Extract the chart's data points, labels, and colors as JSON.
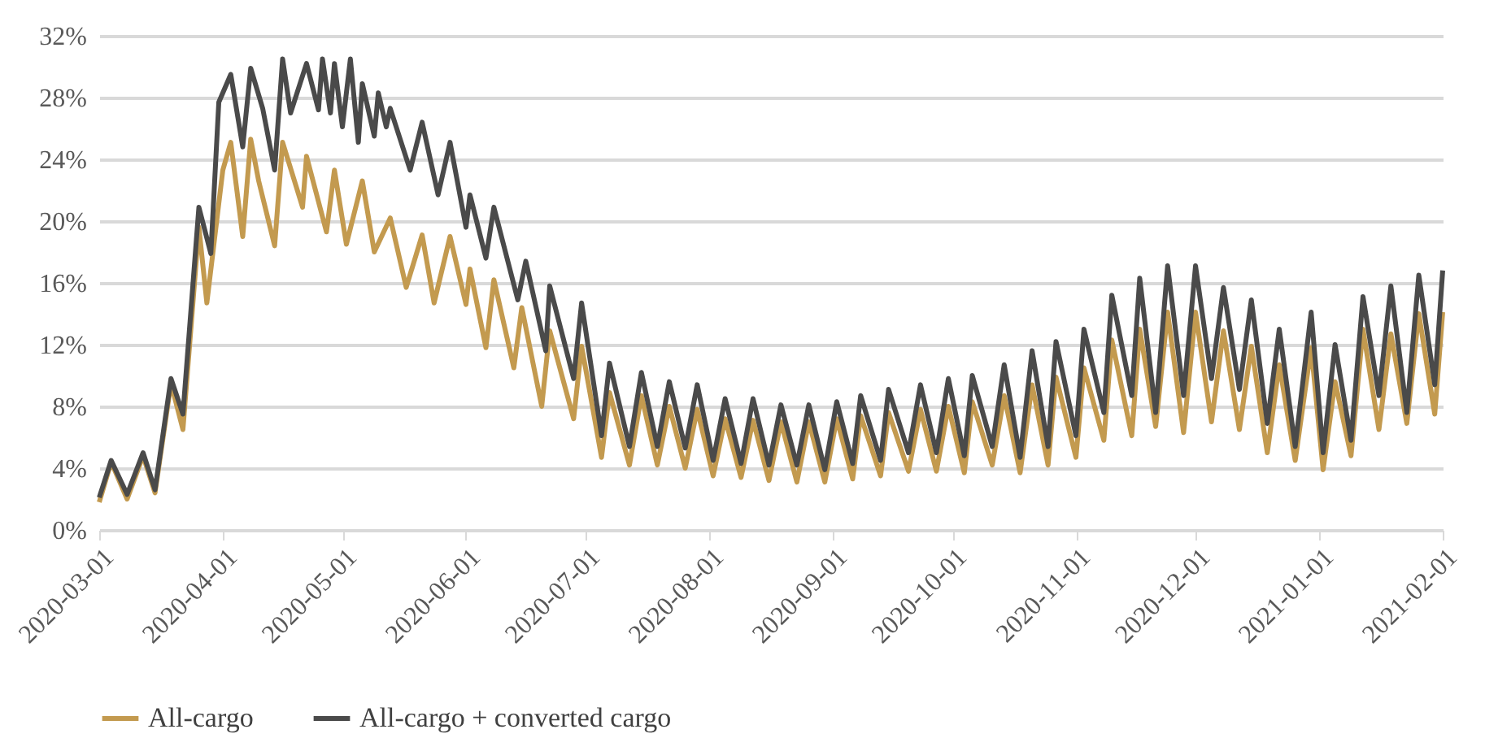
{
  "chart_data": {
    "type": "line",
    "xlim": [
      "2020-03-01",
      "2021-02-01"
    ],
    "xticks": [
      "2020-03-01",
      "2020-04-01",
      "2020-05-01",
      "2020-06-01",
      "2020-07-01",
      "2020-08-01",
      "2020-09-01",
      "2020-10-01",
      "2020-11-01",
      "2020-12-01",
      "2021-01-01",
      "2021-02-01"
    ],
    "ylim": [
      0,
      32
    ],
    "yticks": [
      {
        "value": 0,
        "label": "0%"
      },
      {
        "value": 4,
        "label": "4%"
      },
      {
        "value": 8,
        "label": "8%"
      },
      {
        "value": 12,
        "label": "12%"
      },
      {
        "value": 16,
        "label": "16%"
      },
      {
        "value": 20,
        "label": "20%"
      },
      {
        "value": 24,
        "label": "24%"
      },
      {
        "value": 28,
        "label": "28%"
      },
      {
        "value": 32,
        "label": "32%"
      }
    ],
    "grid": "y",
    "legend": "bottom",
    "line_style": "solid",
    "marker": "none",
    "series": [
      {
        "name": "All-cargo",
        "color": "#c39a4f",
        "x": [
          "2020-03-01",
          "2020-03-04",
          "2020-03-08",
          "2020-03-12",
          "2020-03-15",
          "2020-03-19",
          "2020-03-22",
          "2020-03-26",
          "2020-03-28",
          "2020-04-01",
          "2020-04-03",
          "2020-04-06",
          "2020-04-08",
          "2020-04-10",
          "2020-04-14",
          "2020-04-16",
          "2020-04-21",
          "2020-04-22",
          "2020-04-27",
          "2020-04-29",
          "2020-05-02",
          "2020-05-06",
          "2020-05-09",
          "2020-05-13",
          "2020-05-17",
          "2020-05-21",
          "2020-05-24",
          "2020-05-28",
          "2020-06-01",
          "2020-06-02",
          "2020-06-06",
          "2020-06-08",
          "2020-06-13",
          "2020-06-15",
          "2020-06-20",
          "2020-06-22",
          "2020-06-28",
          "2020-06-30",
          "2020-07-05",
          "2020-07-07",
          "2020-07-12",
          "2020-07-15",
          "2020-07-19",
          "2020-07-22",
          "2020-07-26",
          "2020-07-29",
          "2020-08-02",
          "2020-08-05",
          "2020-08-09",
          "2020-08-12",
          "2020-08-16",
          "2020-08-19",
          "2020-08-23",
          "2020-08-26",
          "2020-08-30",
          "2020-09-02",
          "2020-09-06",
          "2020-09-08",
          "2020-09-13",
          "2020-09-15",
          "2020-09-20",
          "2020-09-23",
          "2020-09-27",
          "2020-09-30",
          "2020-10-04",
          "2020-10-06",
          "2020-10-11",
          "2020-10-14",
          "2020-10-18",
          "2020-10-21",
          "2020-10-25",
          "2020-10-27",
          "2020-11-01",
          "2020-11-03",
          "2020-11-08",
          "2020-11-10",
          "2020-11-15",
          "2020-11-17",
          "2020-11-21",
          "2020-11-24",
          "2020-11-28",
          "2020-12-01",
          "2020-12-05",
          "2020-12-08",
          "2020-12-12",
          "2020-12-15",
          "2020-12-19",
          "2020-12-22",
          "2020-12-26",
          "2020-12-30",
          "2021-01-02",
          "2021-01-05",
          "2021-01-09",
          "2021-01-12",
          "2021-01-16",
          "2021-01-19",
          "2021-01-23",
          "2021-01-26",
          "2021-01-30",
          "2021-02-01"
        ],
        "values": [
          1.8,
          4.4,
          2.0,
          4.8,
          2.4,
          9.5,
          6.5,
          19.6,
          14.7,
          23.3,
          25.1,
          19.0,
          25.3,
          22.6,
          18.4,
          25.1,
          20.9,
          24.2,
          19.3,
          23.3,
          18.5,
          22.6,
          18.0,
          20.2,
          15.7,
          19.1,
          14.7,
          19.0,
          14.6,
          16.9,
          11.8,
          16.2,
          10.5,
          14.4,
          8.0,
          12.9,
          7.2,
          11.9,
          4.7,
          8.9,
          4.2,
          8.7,
          4.2,
          8.0,
          4.0,
          7.8,
          3.5,
          7.2,
          3.4,
          7.1,
          3.2,
          7.0,
          3.1,
          7.0,
          3.1,
          7.2,
          3.3,
          7.4,
          3.5,
          7.6,
          3.8,
          7.8,
          3.8,
          8.0,
          3.7,
          8.3,
          4.2,
          8.7,
          3.7,
          9.4,
          4.2,
          9.9,
          4.7,
          10.5,
          5.8,
          12.3,
          6.1,
          13.0,
          6.7,
          14.1,
          6.3,
          14.1,
          7.0,
          12.9,
          6.5,
          11.9,
          5.0,
          10.7,
          4.5,
          11.8,
          3.9,
          9.6,
          4.8,
          13.0,
          6.5,
          12.7,
          6.9,
          14.0,
          7.5,
          14.1
        ]
      },
      {
        "name": "All-cargo + converted cargo",
        "color": "#4a4a4a",
        "x": [
          "2020-03-01",
          "2020-03-04",
          "2020-03-08",
          "2020-03-12",
          "2020-03-15",
          "2020-03-19",
          "2020-03-22",
          "2020-03-26",
          "2020-03-29",
          "2020-03-31",
          "2020-04-03",
          "2020-04-06",
          "2020-04-08",
          "2020-04-11",
          "2020-04-14",
          "2020-04-16",
          "2020-04-18",
          "2020-04-22",
          "2020-04-25",
          "2020-04-26",
          "2020-04-28",
          "2020-04-29",
          "2020-05-01",
          "2020-05-03",
          "2020-05-05",
          "2020-05-06",
          "2020-05-09",
          "2020-05-10",
          "2020-05-12",
          "2020-05-13",
          "2020-05-18",
          "2020-05-21",
          "2020-05-25",
          "2020-05-28",
          "2020-06-01",
          "2020-06-02",
          "2020-06-06",
          "2020-06-08",
          "2020-06-14",
          "2020-06-16",
          "2020-06-21",
          "2020-06-22",
          "2020-06-28",
          "2020-06-30",
          "2020-07-05",
          "2020-07-07",
          "2020-07-12",
          "2020-07-15",
          "2020-07-19",
          "2020-07-22",
          "2020-07-26",
          "2020-07-29",
          "2020-08-02",
          "2020-08-05",
          "2020-08-09",
          "2020-08-12",
          "2020-08-16",
          "2020-08-19",
          "2020-08-23",
          "2020-08-26",
          "2020-08-30",
          "2020-09-02",
          "2020-09-06",
          "2020-09-08",
          "2020-09-13",
          "2020-09-15",
          "2020-09-20",
          "2020-09-23",
          "2020-09-27",
          "2020-09-30",
          "2020-10-04",
          "2020-10-06",
          "2020-10-11",
          "2020-10-14",
          "2020-10-18",
          "2020-10-21",
          "2020-10-25",
          "2020-10-27",
          "2020-11-01",
          "2020-11-03",
          "2020-11-08",
          "2020-11-10",
          "2020-11-15",
          "2020-11-17",
          "2020-11-21",
          "2020-11-24",
          "2020-11-28",
          "2020-12-01",
          "2020-12-05",
          "2020-12-08",
          "2020-12-12",
          "2020-12-15",
          "2020-12-19",
          "2020-12-22",
          "2020-12-26",
          "2020-12-30",
          "2021-01-02",
          "2021-01-05",
          "2021-01-09",
          "2021-01-12",
          "2021-01-16",
          "2021-01-19",
          "2021-01-23",
          "2021-01-26",
          "2021-01-30",
          "2021-02-01"
        ],
        "values": [
          2.1,
          4.5,
          2.3,
          5.0,
          2.6,
          9.8,
          7.5,
          20.9,
          17.9,
          27.7,
          29.5,
          24.8,
          29.9,
          27.3,
          23.3,
          30.5,
          27.0,
          30.2,
          27.2,
          30.5,
          27.0,
          30.2,
          26.1,
          30.5,
          25.1,
          28.9,
          25.5,
          28.3,
          26.1,
          27.3,
          23.3,
          26.4,
          21.7,
          25.1,
          19.6,
          21.7,
          17.6,
          20.9,
          14.9,
          17.4,
          11.6,
          15.8,
          9.8,
          14.7,
          6.1,
          10.8,
          5.4,
          10.2,
          5.4,
          9.6,
          5.3,
          9.4,
          4.5,
          8.5,
          4.3,
          8.5,
          4.2,
          8.1,
          4.2,
          8.1,
          3.9,
          8.3,
          4.3,
          8.7,
          4.5,
          9.1,
          5.0,
          9.4,
          5.0,
          9.8,
          4.8,
          10.0,
          5.4,
          10.7,
          4.7,
          11.6,
          5.4,
          12.2,
          6.1,
          13.0,
          7.6,
          15.2,
          8.7,
          16.3,
          7.6,
          17.1,
          8.7,
          17.1,
          9.8,
          15.7,
          9.1,
          14.9,
          6.9,
          13.0,
          5.4,
          14.1,
          5.0,
          12.0,
          5.8,
          15.1,
          8.7,
          15.8,
          7.6,
          16.5,
          9.4,
          16.8
        ]
      }
    ]
  }
}
